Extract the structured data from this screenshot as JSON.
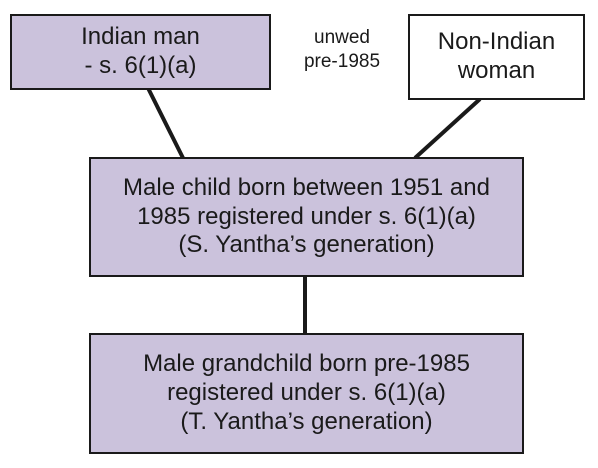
{
  "diagram": {
    "father": {
      "lines": [
        "Indian man",
        "- s. 6(1)(a)"
      ],
      "fill": "#cbc2dc"
    },
    "mother": {
      "lines": [
        "Non-Indian",
        "woman"
      ],
      "fill": "#ffffff"
    },
    "relationship": {
      "lines": [
        "unwed",
        "pre-1985"
      ]
    },
    "child": {
      "lines": [
        "Male child born between 1951 and",
        "1985 registered under s. 6(1)(a)",
        "(S. Yantha’s generation)"
      ],
      "fill": "#cbc2dc"
    },
    "grandchild": {
      "lines": [
        "Male grandchild born pre-1985",
        "registered under s. 6(1)(a)",
        "(T. Yantha’s generation)"
      ],
      "fill": "#cbc2dc"
    }
  }
}
